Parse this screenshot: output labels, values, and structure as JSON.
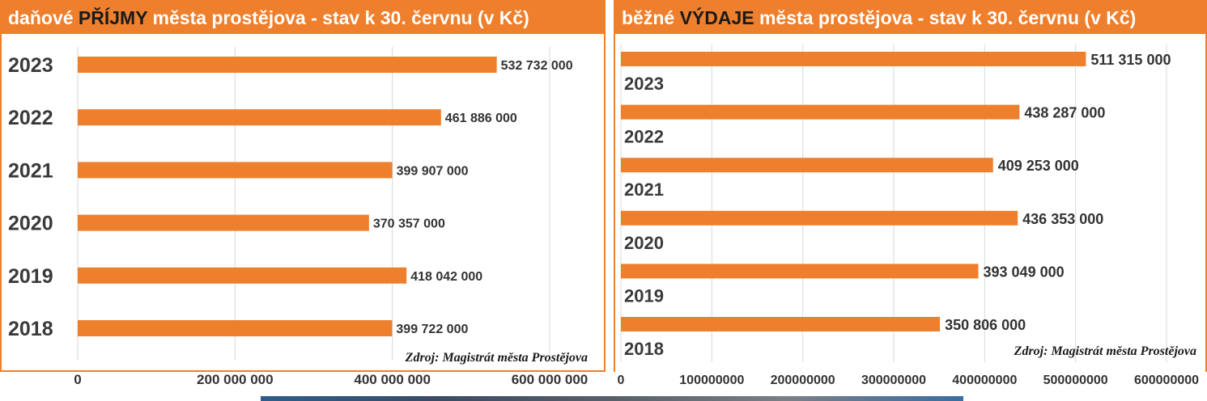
{
  "charts": {
    "income": {
      "title_pre": "daňové ",
      "title_highlight": "PŘÍJMY",
      "title_post": " města prostějova - stav k 30. červnu (v Kč)"
    },
    "expenses": {
      "title_pre": "běžné ",
      "title_highlight": "VÝDAJE",
      "title_post": " města prostějova  - stav k 30. červnu (v Kč)"
    }
  },
  "chart_data": [
    {
      "type": "bar",
      "orientation": "horizontal",
      "categories": [
        "2023",
        "2022",
        "2021",
        "2020",
        "2019",
        "2018"
      ],
      "values": [
        532732000,
        461886000,
        399907000,
        370357000,
        418042000,
        399722000
      ],
      "value_labels": [
        "532 732 000",
        "461 886 000",
        "399 907 000",
        "370 357 000",
        "418 042 000",
        "399 722 000"
      ],
      "xlim": [
        0,
        600000000
      ],
      "xticks": [
        0,
        200000000,
        400000000,
        600000000
      ],
      "xtick_labels": [
        "0",
        "200 000 000",
        "400 000 000",
        "600 000 000"
      ],
      "grid": true,
      "bar_color": "#ee7f2d",
      "source": "Zdroj: Magistrát města Prostějova"
    },
    {
      "type": "bar",
      "orientation": "horizontal",
      "categories": [
        "2023",
        "2022",
        "2021",
        "2020",
        "2019",
        "2018"
      ],
      "values": [
        511315000,
        438287000,
        409253000,
        436353000,
        393049000,
        350806000
      ],
      "value_labels": [
        "511 315 000",
        "438 287 000",
        "409 253 000",
        "436 353 000",
        "393 049 000",
        "350 806 000"
      ],
      "xlim": [
        0,
        600000000
      ],
      "xticks": [
        0,
        100000000,
        200000000,
        300000000,
        400000000,
        500000000,
        600000000
      ],
      "xtick_labels": [
        "0",
        "100000000",
        "200000000",
        "300000000",
        "400000000",
        "500000000",
        "600000000"
      ],
      "grid": true,
      "bar_color": "#ee7f2d",
      "source": "Zdroj: Magistrát města Prostějova"
    }
  ]
}
